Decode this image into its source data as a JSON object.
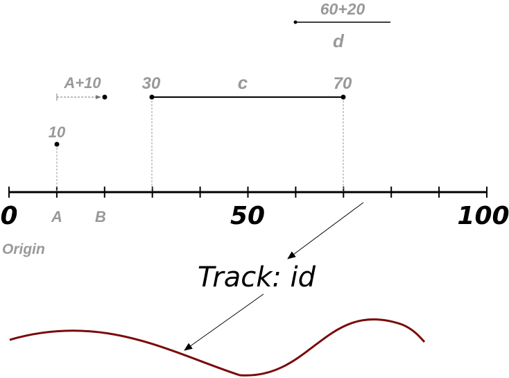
{
  "axis": {
    "min": 0,
    "max": 100,
    "tick_step": 10,
    "major_labels": [
      {
        "value": 0,
        "text": "0"
      },
      {
        "value": 50,
        "text": "50"
      },
      {
        "value": 100,
        "text": "100"
      }
    ],
    "minor_labels": [
      {
        "value": 10,
        "text": "A"
      },
      {
        "value": 20,
        "text": "B"
      }
    ],
    "origin_label": "Origin"
  },
  "annotations": {
    "point_a": {
      "value": 10,
      "label": "10"
    },
    "offset": {
      "from": 10,
      "to": 20,
      "label": "A+10"
    },
    "range_c": {
      "start": 30,
      "end": 70,
      "start_label": "30",
      "end_label": "70",
      "name": "c"
    },
    "range_d": {
      "start": 60,
      "end": 80,
      "label_top": "60+20",
      "name": "d"
    }
  },
  "track": {
    "title": "Track: id"
  },
  "colors": {
    "axis": "#000000",
    "annotation": "#999999",
    "track": "#7a0a0a"
  }
}
